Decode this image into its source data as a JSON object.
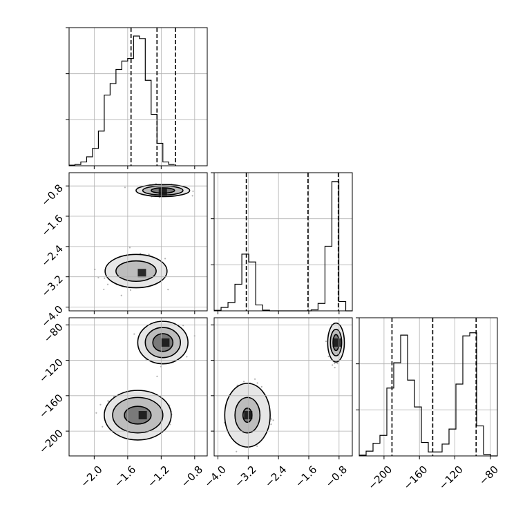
{
  "chart_data": {
    "type": "corner",
    "title": "",
    "style": {
      "line_color": "#000000",
      "grid_color": "#b0b0b0",
      "scatter_color": "#555555",
      "background": "#ffffff"
    },
    "parameters": [
      {
        "label": "",
        "range": [
          -2.3,
          -0.65
        ],
        "ticks": [
          -2.0,
          -1.6,
          -1.2,
          -0.8
        ],
        "tick_labels": [
          "−2.0",
          "−1.6",
          "−1.2",
          "−0.8"
        ]
      },
      {
        "label": "",
        "range": [
          -4.1,
          -0.45
        ],
        "ticks": [
          -4.0,
          -3.2,
          -2.4,
          -1.6,
          -0.8
        ],
        "tick_labels": [
          "−4.0",
          "−3.2",
          "−2.4",
          "−1.6",
          "−0.8"
        ]
      },
      {
        "label": "",
        "range": [
          -228,
          -72
        ],
        "ticks": [
          -200,
          -160,
          -120,
          -80
        ],
        "tick_labels": [
          "−200",
          "−160",
          "−120",
          "−80"
        ]
      }
    ],
    "histograms": [
      {
        "param": 0,
        "edges_start": -2.3,
        "bin_width": 0.07,
        "counts": [
          1,
          2,
          6,
          14,
          27,
          54,
          110,
          128,
          150,
          163,
          167,
          202,
          198,
          133,
          80,
          35,
          6,
          2
        ],
        "ymax": 215,
        "quantiles": [
          -1.56,
          -1.25,
          -1.03
        ]
      },
      {
        "param": 1,
        "edges_start": -4.1,
        "bin_width": 0.183,
        "counts": [
          2,
          14,
          34,
          108,
          230,
          198,
          24,
          3,
          0,
          0,
          0,
          0,
          0,
          0,
          4,
          30,
          262,
          524,
          38,
          0
        ],
        "ymax": 560,
        "quantiles": [
          -3.25,
          -1.62,
          -0.82
        ]
      },
      {
        "param": 2,
        "edges_start": -228,
        "bin_width": 7.8,
        "counts": [
          1,
          6,
          16,
          26,
          86,
          118,
          153,
          96,
          62,
          17,
          5,
          5,
          15,
          34,
          91,
          152,
          156,
          38,
          2,
          0
        ],
        "ymax": 175,
        "quantiles": [
          -191,
          -145,
          -96
        ]
      }
    ],
    "pairs": [
      {
        "x": 0,
        "y": 1,
        "clusters": [
          {
            "center": [
              -1.18,
              -0.92
            ],
            "sd": [
              0.13,
              0.07
            ],
            "n": 230,
            "contour_radii": [
              [
                0.32,
                0.16
              ],
              [
                0.24,
                0.12
              ],
              [
                0.14,
                0.07
              ]
            ]
          },
          {
            "center": [
              -1.5,
              -3.05
            ],
            "sd": [
              0.17,
              0.19
            ],
            "n": 220,
            "contour_radii": [
              [
                0.37,
                0.44
              ],
              [
                0.24,
                0.27
              ]
            ]
          }
        ],
        "peaks": [
          [
            -1.18,
            -0.95
          ],
          [
            -1.43,
            -3.1
          ]
        ]
      },
      {
        "x": 0,
        "y": 2,
        "clusters": [
          {
            "center": [
              -1.18,
              -100
            ],
            "sd": [
              0.12,
              9.5
            ],
            "n": 230,
            "contour_radii": [
              [
                0.3,
                24
              ],
              [
                0.21,
                17
              ],
              [
                0.12,
                10
              ]
            ]
          },
          {
            "center": [
              -1.48,
              -182
            ],
            "sd": [
              0.17,
              11
            ],
            "n": 220,
            "contour_radii": [
              [
                0.4,
                28
              ],
              [
                0.3,
                20
              ],
              [
                0.16,
                10
              ]
            ]
          }
        ],
        "peaks": [
          [
            -1.15,
            -100
          ],
          [
            -1.42,
            -182
          ]
        ]
      },
      {
        "x": 1,
        "y": 2,
        "clusters": [
          {
            "center": [
              -0.88,
              -100
            ],
            "sd": [
              0.07,
              9
            ],
            "n": 230,
            "contour_radii": [
              [
                0.22,
                22
              ],
              [
                0.15,
                15
              ],
              [
                0.08,
                9
              ]
            ]
          },
          {
            "center": [
              -3.22,
              -182
            ],
            "sd": [
              0.23,
              14
            ],
            "n": 220,
            "contour_radii": [
              [
                0.6,
                36
              ],
              [
                0.33,
                20
              ],
              [
                0.12,
                8
              ]
            ]
          }
        ],
        "peaks": [
          [
            -0.86,
            -100
          ],
          [
            -3.2,
            -182
          ]
        ]
      }
    ]
  }
}
